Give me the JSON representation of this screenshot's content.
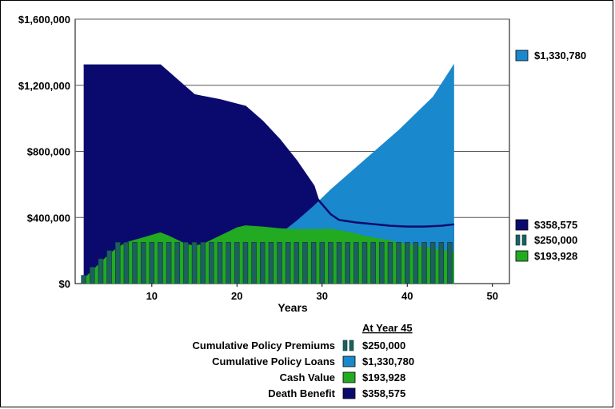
{
  "colors": {
    "death_benefit": "#0a0a6e",
    "policy_loans": "#1a88cc",
    "cash_value": "#22aa22",
    "premiums": "#1e5f5f",
    "grid": "#555555",
    "frame": "#000000"
  },
  "chart_data": {
    "type": "area",
    "title": "",
    "xlabel": "Years",
    "ylabel": "",
    "xlim": [
      1,
      52
    ],
    "ylim": [
      0,
      1600000
    ],
    "x_ticks": [
      10,
      20,
      30,
      40,
      50
    ],
    "x_tick_labels": [
      "10",
      "20",
      "30",
      "40",
      "50"
    ],
    "y_ticks": [
      0,
      400000,
      800000,
      1200000,
      1600000
    ],
    "y_tick_labels": [
      "$0",
      "$400,000",
      "$800,000",
      "$1,200,000",
      "$1,600,000"
    ],
    "grid": true,
    "legend_position": "right",
    "series": [
      {
        "key": "death_benefit",
        "name": "Death Benefit",
        "kind": "area",
        "points": [
          [
            2,
            1320000
          ],
          [
            3,
            1320000
          ],
          [
            5,
            1320000
          ],
          [
            8,
            1320000
          ],
          [
            11,
            1320000
          ],
          [
            13,
            1230000
          ],
          [
            15,
            1140000
          ],
          [
            18,
            1110000
          ],
          [
            21,
            1070000
          ],
          [
            23,
            980000
          ],
          [
            25,
            870000
          ],
          [
            27,
            740000
          ],
          [
            29,
            590000
          ],
          [
            29.5,
            510000
          ],
          [
            31,
            420000
          ],
          [
            32,
            385000
          ],
          [
            34,
            370000
          ],
          [
            36,
            360000
          ],
          [
            38,
            350000
          ],
          [
            40,
            345000
          ],
          [
            42,
            345000
          ],
          [
            44,
            350000
          ],
          [
            45.5,
            358575
          ]
        ]
      },
      {
        "key": "policy_loans",
        "name": "Cumulative Policy Loans",
        "kind": "area",
        "points": [
          [
            2,
            0
          ],
          [
            10,
            0
          ],
          [
            11,
            20000
          ],
          [
            13,
            80000
          ],
          [
            15,
            130000
          ],
          [
            17,
            160000
          ],
          [
            19,
            170000
          ],
          [
            21,
            180000
          ],
          [
            23,
            230000
          ],
          [
            25,
            300000
          ],
          [
            27,
            380000
          ],
          [
            29,
            470000
          ],
          [
            31,
            570000
          ],
          [
            33,
            660000
          ],
          [
            35,
            750000
          ],
          [
            37,
            840000
          ],
          [
            39,
            930000
          ],
          [
            41,
            1030000
          ],
          [
            43,
            1130000
          ],
          [
            45.5,
            1330780
          ]
        ]
      },
      {
        "key": "cash_value",
        "name": "Cash Value",
        "kind": "area",
        "points": [
          [
            2,
            30000
          ],
          [
            3,
            80000
          ],
          [
            4,
            130000
          ],
          [
            5,
            180000
          ],
          [
            6,
            220000
          ],
          [
            7,
            250000
          ],
          [
            8,
            265000
          ],
          [
            9,
            280000
          ],
          [
            10,
            295000
          ],
          [
            11,
            310000
          ],
          [
            12,
            290000
          ],
          [
            13,
            265000
          ],
          [
            14,
            240000
          ],
          [
            15,
            230000
          ],
          [
            16,
            240000
          ],
          [
            17,
            265000
          ],
          [
            18,
            290000
          ],
          [
            19,
            315000
          ],
          [
            20,
            340000
          ],
          [
            21,
            352000
          ],
          [
            23,
            345000
          ],
          [
            25,
            335000
          ],
          [
            27,
            330000
          ],
          [
            29,
            330000
          ],
          [
            31,
            332000
          ],
          [
            33,
            315000
          ],
          [
            35,
            290000
          ],
          [
            37,
            270000
          ],
          [
            39,
            250000
          ],
          [
            41,
            230000
          ],
          [
            43,
            212000
          ],
          [
            45.5,
            193928
          ]
        ]
      },
      {
        "key": "premiums",
        "name": "Cumulative Policy Premiums",
        "kind": "bars",
        "points": [
          [
            2,
            50000
          ],
          [
            3,
            100000
          ],
          [
            4,
            150000
          ],
          [
            5,
            200000
          ],
          [
            6,
            250000
          ],
          [
            7,
            250000
          ],
          [
            8,
            250000
          ],
          [
            9,
            250000
          ],
          [
            10,
            250000
          ],
          [
            11,
            250000
          ],
          [
            12,
            250000
          ],
          [
            13,
            250000
          ],
          [
            14,
            250000
          ],
          [
            15,
            250000
          ],
          [
            16,
            250000
          ],
          [
            17,
            250000
          ],
          [
            18,
            250000
          ],
          [
            19,
            250000
          ],
          [
            20,
            250000
          ],
          [
            21,
            250000
          ],
          [
            22,
            250000
          ],
          [
            23,
            250000
          ],
          [
            24,
            250000
          ],
          [
            25,
            250000
          ],
          [
            26,
            250000
          ],
          [
            27,
            250000
          ],
          [
            28,
            250000
          ],
          [
            29,
            250000
          ],
          [
            30,
            250000
          ],
          [
            31,
            250000
          ],
          [
            32,
            250000
          ],
          [
            33,
            250000
          ],
          [
            34,
            250000
          ],
          [
            35,
            250000
          ],
          [
            36,
            250000
          ],
          [
            37,
            250000
          ],
          [
            38,
            250000
          ],
          [
            39,
            250000
          ],
          [
            40,
            250000
          ],
          [
            41,
            250000
          ],
          [
            42,
            250000
          ],
          [
            43,
            250000
          ],
          [
            44,
            250000
          ],
          [
            45,
            250000
          ]
        ]
      }
    ],
    "legend": [
      {
        "key": "policy_loans",
        "value": "$1,330,780"
      },
      {
        "key": "death_benefit",
        "value": "$358,575"
      },
      {
        "key": "premiums",
        "value": "$250,000"
      },
      {
        "key": "cash_value",
        "value": "$193,928"
      }
    ]
  },
  "summary": {
    "header": "At Year 45",
    "rows": [
      {
        "key": "premiums",
        "label": "Cumulative Policy Premiums",
        "value": "$250,000"
      },
      {
        "key": "policy_loans",
        "label": "Cumulative Policy Loans",
        "value": "$1,330,780"
      },
      {
        "key": "cash_value",
        "label": "Cash Value",
        "value": "$193,928"
      },
      {
        "key": "death_benefit",
        "label": "Death Benefit",
        "value": "$358,575"
      }
    ]
  }
}
